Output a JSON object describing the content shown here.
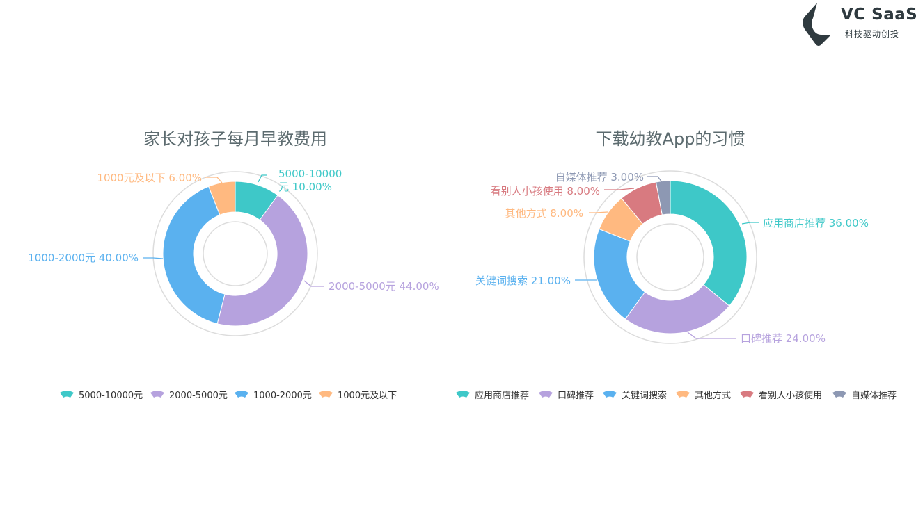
{
  "brand": {
    "name": "VC SaaS",
    "slogan": "科技驱动创投",
    "color": "#2f3a3f"
  },
  "chart_data": [
    {
      "type": "pie",
      "donut": true,
      "title": "家长对孩子每月早教费用",
      "legend_position": "bottom",
      "slices": [
        {
          "name": "5000-10000元",
          "value": 10.0,
          "label": "5000-10000元 10.00%",
          "color": "#3ec8c8"
        },
        {
          "name": "2000-5000元",
          "value": 44.0,
          "label": "2000-5000元 44.00%",
          "color": "#b6a2de"
        },
        {
          "name": "1000-2000元",
          "value": 40.0,
          "label": "1000-2000元 40.00%",
          "color": "#5ab1ef"
        },
        {
          "name": "1000元及以下",
          "value": 6.0,
          "label": "1000元及以下 6.00%",
          "color": "#ffb980"
        }
      ]
    },
    {
      "type": "pie",
      "donut": true,
      "title": "下载幼教App的习惯",
      "legend_position": "bottom",
      "slices": [
        {
          "name": "应用商店推荐",
          "value": 36.0,
          "label": "应用商店推荐 36.00%",
          "color": "#3ec8c8"
        },
        {
          "name": "口碑推荐",
          "value": 24.0,
          "label": "口碑推荐 24.00%",
          "color": "#b6a2de"
        },
        {
          "name": "关键词搜索",
          "value": 21.0,
          "label": "关键词搜索 21.00%",
          "color": "#5ab1ef"
        },
        {
          "name": "其他方式",
          "value": 8.0,
          "label": "其他方式 8.00%",
          "color": "#ffb980"
        },
        {
          "name": "看别人小孩使用",
          "value": 8.0,
          "label": "看别人小孩使用 8.00%",
          "color": "#d87a80"
        },
        {
          "name": "自媒体推荐",
          "value": 3.0,
          "label": "自媒体推荐 3.00%",
          "color": "#8d98b3"
        }
      ]
    }
  ]
}
